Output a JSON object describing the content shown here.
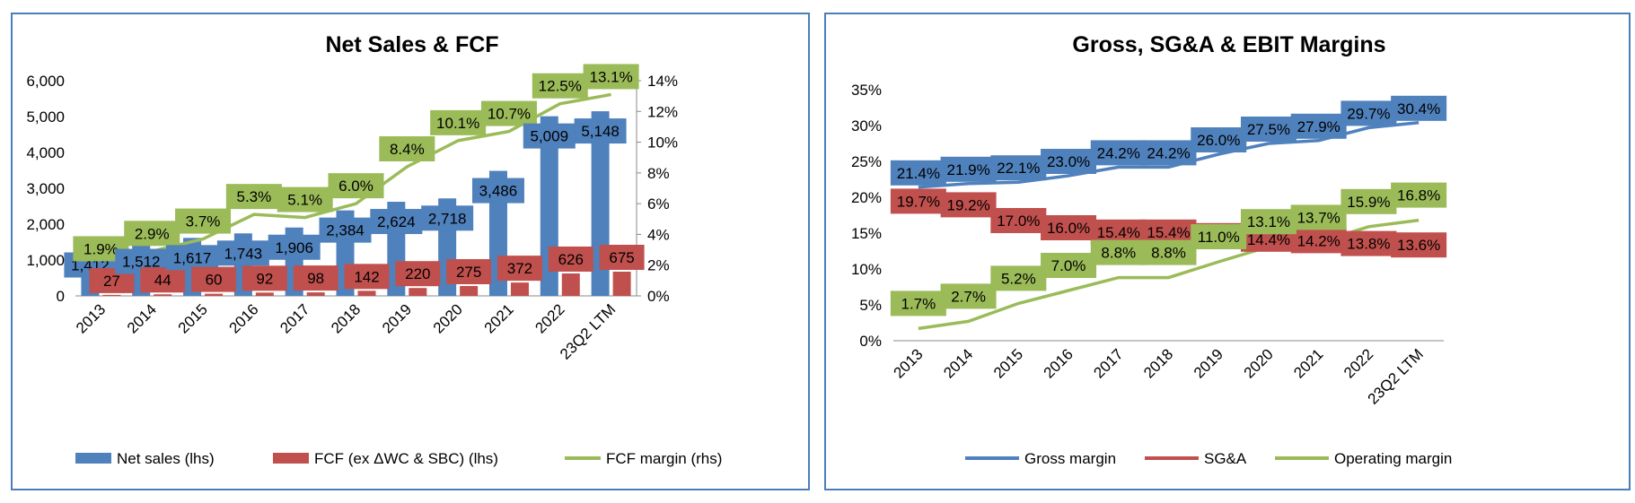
{
  "chart_data": [
    {
      "type": "bar",
      "title": "Net Sales & FCF",
      "categories": [
        "2013",
        "2014",
        "2015",
        "2016",
        "2017",
        "2018",
        "2019",
        "2020",
        "2021",
        "2022",
        "23Q2 LTM"
      ],
      "y_left_ticks": [
        "0",
        "1,000",
        "2,000",
        "3,000",
        "4,000",
        "5,000",
        "6,000"
      ],
      "y_left_range": [
        0,
        6000
      ],
      "y_right_ticks": [
        "0%",
        "2%",
        "4%",
        "6%",
        "8%",
        "10%",
        "12%",
        "14%"
      ],
      "y_right_range": [
        0,
        14
      ],
      "legend_position": "bottom",
      "series": [
        {
          "name": "Net sales (lhs)",
          "kind": "bar",
          "axis": "left",
          "color": "#4f81bd",
          "values": [
            1412,
            1512,
            1617,
            1743,
            1906,
            2384,
            2624,
            2718,
            3486,
            5009,
            5148
          ],
          "labels": [
            "1,412",
            "1,512",
            "1,617",
            "1,743",
            "1,906",
            "2,384",
            "2,624",
            "2,718",
            "3,486",
            "5,009",
            "5,148"
          ]
        },
        {
          "name": "FCF (ex ΔWC & SBC) (lhs)",
          "kind": "bar",
          "axis": "left",
          "color": "#c0504d",
          "values": [
            27,
            44,
            60,
            92,
            98,
            142,
            220,
            275,
            372,
            626,
            675
          ],
          "labels": [
            "27",
            "44",
            "60",
            "92",
            "98",
            "142",
            "220",
            "275",
            "372",
            "626",
            "675"
          ]
        },
        {
          "name": "FCF margin (rhs)",
          "kind": "line",
          "axis": "right",
          "color": "#9bbb59",
          "values": [
            1.9,
            2.9,
            3.7,
            5.3,
            5.1,
            6.0,
            8.4,
            10.1,
            10.7,
            12.5,
            13.1
          ],
          "labels": [
            "1.9%",
            "2.9%",
            "3.7%",
            "5.3%",
            "5.1%",
            "6.0%",
            "8.4%",
            "10.1%",
            "10.7%",
            "12.5%",
            "13.1%"
          ]
        }
      ]
    },
    {
      "type": "line",
      "title": "Gross, SG&A & EBIT Margins",
      "categories": [
        "2013",
        "2014",
        "2015",
        "2016",
        "2017",
        "2018",
        "2019",
        "2020",
        "2021",
        "2022",
        "23Q2 LTM"
      ],
      "y_ticks": [
        "0%",
        "5%",
        "10%",
        "15%",
        "20%",
        "25%",
        "30%",
        "35%"
      ],
      "y_range": [
        0,
        35
      ],
      "legend_position": "bottom",
      "series": [
        {
          "name": "Gross margin",
          "color": "#4f81bd",
          "values": [
            21.4,
            21.9,
            22.1,
            23.0,
            24.2,
            24.2,
            26.0,
            27.5,
            27.9,
            29.7,
            30.4
          ],
          "labels": [
            "21.4%",
            "21.9%",
            "22.1%",
            "23.0%",
            "24.2%",
            "24.2%",
            "26.0%",
            "27.5%",
            "27.9%",
            "29.7%",
            "30.4%"
          ]
        },
        {
          "name": "SG&A",
          "color": "#c0504d",
          "values": [
            19.7,
            19.2,
            17.0,
            16.0,
            15.4,
            15.4,
            14.9,
            14.4,
            14.2,
            13.8,
            13.6
          ],
          "labels": [
            "19.7%",
            "19.2%",
            "17.0%",
            "16.0%",
            "15.4%",
            "15.4%",
            "14.9%",
            "14.4%",
            "14.2%",
            "13.8%",
            "13.6%"
          ]
        },
        {
          "name": "Operating margin",
          "color": "#9bbb59",
          "values": [
            1.7,
            2.7,
            5.2,
            7.0,
            8.8,
            8.8,
            11.0,
            13.1,
            13.7,
            15.9,
            16.8
          ],
          "labels": [
            "1.7%",
            "2.7%",
            "5.2%",
            "7.0%",
            "8.8%",
            "8.8%",
            "11.0%",
            "13.1%",
            "13.7%",
            "15.9%",
            "16.8%"
          ]
        }
      ]
    }
  ]
}
